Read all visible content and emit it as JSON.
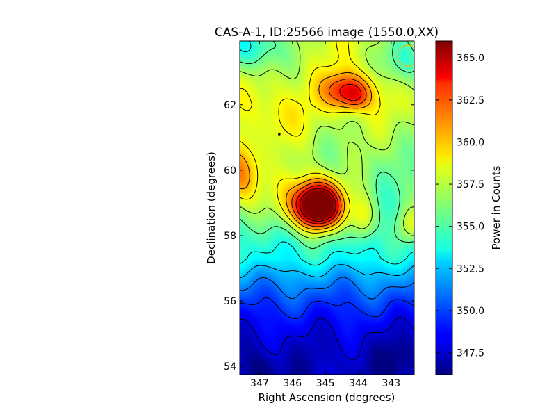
{
  "chart_data": {
    "type": "heatmap",
    "title": "CAS-A-1, ID:25566 image (1550.0,XX)",
    "xlabel": "Right Ascension (degrees)",
    "ylabel": "Declination (degrees)",
    "xlim": [
      347.6,
      342.3
    ],
    "ylim": [
      53.75,
      63.95
    ],
    "x_ticks": [
      347,
      346,
      345,
      344,
      343
    ],
    "y_ticks": [
      54,
      56,
      58,
      60,
      62
    ],
    "grid": false,
    "colormap": "jet",
    "colorbar": {
      "label": "Power in Counts",
      "range": [
        346.2,
        366.0
      ],
      "ticks": [
        "347.5",
        "350.0",
        "352.5",
        "355.0",
        "357.5",
        "360.0",
        "362.5",
        "365.0"
      ]
    },
    "peaks": [
      {
        "ra": 345.2,
        "dec": 58.9,
        "value": 366.0
      },
      {
        "ra": 344.3,
        "dec": 62.45,
        "value": 363.8
      },
      {
        "ra": 347.55,
        "dec": 59.9,
        "value": 362.5
      },
      {
        "ra": 343.85,
        "dec": 58.5,
        "value": 361.5
      },
      {
        "ra": 342.5,
        "dec": 58.3,
        "value": 360.0
      }
    ],
    "contours": "black",
    "markers": [
      {
        "kind": "circle",
        "ra": 342.5,
        "dec": 63.5,
        "color": "#d8c030"
      },
      {
        "kind": "dot",
        "ra": 346.4,
        "dec": 61.1,
        "color": "#000000"
      }
    ]
  }
}
